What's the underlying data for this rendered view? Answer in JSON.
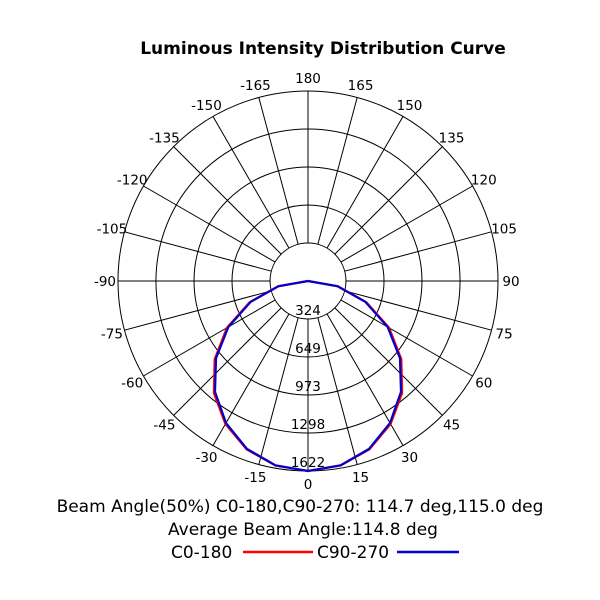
{
  "chart_data": {
    "type": "polar",
    "title": "Luminous Intensity Distribution Curve",
    "angle_labels": [
      "0",
      "15",
      "30",
      "45",
      "60",
      "75",
      "90",
      "105",
      "120",
      "135",
      "150",
      "165",
      "180",
      "-165",
      "-150",
      "-135",
      "-120",
      "-105",
      "-90",
      "-75",
      "-60",
      "-45",
      "-30",
      "-15"
    ],
    "angle_values": [
      0,
      15,
      30,
      45,
      60,
      75,
      90,
      105,
      120,
      135,
      150,
      165,
      180,
      -165,
      -150,
      -135,
      -120,
      -105,
      -90,
      -75,
      -60,
      -45,
      -30,
      -15
    ],
    "radial_labels": [
      "324",
      "649",
      "973",
      "1298",
      "1622"
    ],
    "radial_values": [
      324,
      649,
      973,
      1298,
      1622
    ],
    "rlim": [
      0,
      1622
    ],
    "grid": true,
    "series": [
      {
        "name": "C0-180",
        "color": "#ff0000",
        "angles": [
          0,
          10,
          20,
          30,
          40,
          50,
          60,
          70,
          80,
          90
        ],
        "values": [
          1622,
          1600,
          1530,
          1410,
          1250,
          1040,
          800,
          530,
          260,
          0
        ]
      },
      {
        "name": "C90-270",
        "color": "#0000cc",
        "angles": [
          0,
          10,
          20,
          30,
          40,
          50,
          60,
          70,
          80,
          90
        ],
        "values": [
          1622,
          1598,
          1525,
          1400,
          1235,
          1025,
          785,
          520,
          255,
          0
        ]
      }
    ],
    "info_lines": [
      "Beam Angle(50%) C0-180,C90-270: 114.7 deg,115.0 deg",
      "Average Beam Angle:114.8 deg"
    ],
    "legend_position": "bottom"
  }
}
